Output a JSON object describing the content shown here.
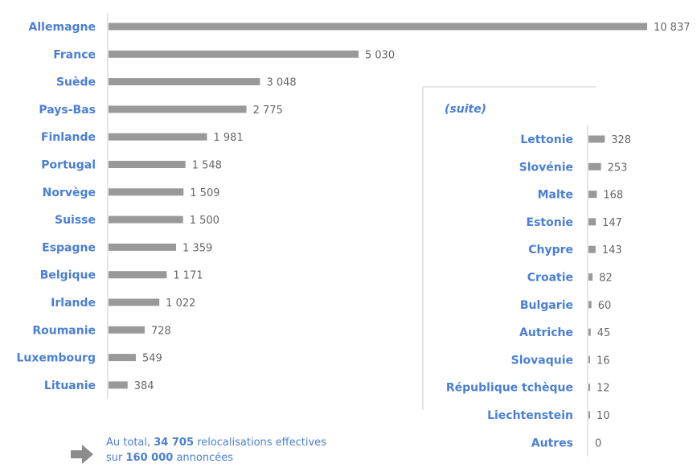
{
  "chart_data": [
    {
      "type": "bar",
      "orientation": "horizontal",
      "categories": [
        "Allemagne",
        "France",
        "Suède",
        "Pays-Bas",
        "Finlande",
        "Portugal",
        "Norvège",
        "Suisse",
        "Espagne",
        "Belgique",
        "Irlande",
        "Roumanie",
        "Luxembourg",
        "Lituanie"
      ],
      "values": [
        10837,
        5030,
        3048,
        2775,
        1981,
        1548,
        1509,
        1500,
        1359,
        1171,
        1022,
        728,
        549,
        384
      ],
      "value_labels": [
        "10 837",
        "5 030",
        "3 048",
        "2 775",
        "1 981",
        "1 548",
        "1 509",
        "1 500",
        "1 359",
        "1 171",
        "1 022",
        "728",
        "549",
        "384"
      ],
      "xlim": [
        0,
        10837
      ],
      "grid": false,
      "bar_color": "#999999"
    },
    {
      "type": "bar",
      "orientation": "horizontal",
      "title": "(suite)",
      "categories": [
        "Lettonie",
        "Slovénie",
        "Malte",
        "Estonie",
        "Chypre",
        "Croatie",
        "Bulgarie",
        "Autriche",
        "Slovaquie",
        "République tchèque",
        "Liechtenstein",
        "Autres"
      ],
      "values": [
        328,
        253,
        168,
        147,
        143,
        82,
        60,
        45,
        16,
        12,
        10,
        0
      ],
      "value_labels": [
        "328",
        "253",
        "168",
        "147",
        "143",
        "82",
        "60",
        "45",
        "16",
        "12",
        "10",
        "0"
      ],
      "xlim": [
        0,
        10837
      ],
      "grid": false,
      "bar_color": "#999999"
    }
  ],
  "note": {
    "prefix": "Au total, ",
    "total": "34 705",
    "middle": " relocalisations effectives",
    "line2_prefix": "sur ",
    "announced": "160 000",
    "suffix": " annoncées"
  },
  "colors": {
    "label": "#4a7fd4",
    "value": "#666666",
    "bar": "#999999",
    "axis": "#cccccc",
    "arrow": "#8c8c8c"
  },
  "icons": {
    "note_arrow": "right-arrow-icon"
  }
}
